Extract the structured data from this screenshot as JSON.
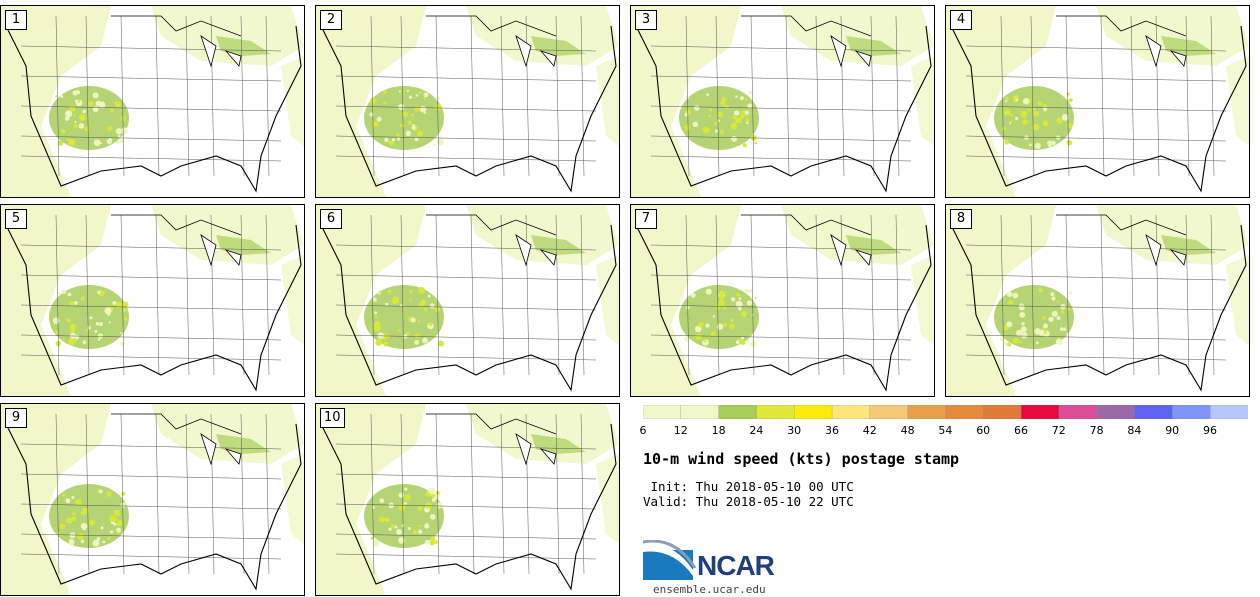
{
  "panels": [
    {
      "label": "1"
    },
    {
      "label": "2"
    },
    {
      "label": "3"
    },
    {
      "label": "4"
    },
    {
      "label": "5"
    },
    {
      "label": "6"
    },
    {
      "label": "7"
    },
    {
      "label": "8"
    },
    {
      "label": "9"
    },
    {
      "label": "10"
    }
  ],
  "colorbar": {
    "ticks": [
      "6",
      "12",
      "18",
      "24",
      "30",
      "36",
      "42",
      "48",
      "54",
      "60",
      "66",
      "72",
      "78",
      "84",
      "90",
      "96"
    ],
    "colors": [
      "#f0f7c8",
      "#f0f7c8",
      "#a6cd5a",
      "#dfe83a",
      "#fbed0b",
      "#fce57a",
      "#f5c97a",
      "#e8a04a",
      "#e48a3c",
      "#de7a3a",
      "#e8093c",
      "#dc4d9a",
      "#9a6aa8",
      "#5e64f0",
      "#7f96f8",
      "#b4c8fa"
    ],
    "unit_range": [
      6,
      102
    ]
  },
  "title": "10-m wind speed (kts) postage stamp",
  "init": " Init: Thu 2018-05-10 00 UTC",
  "valid": "Valid: Thu 2018-05-10 22 UTC",
  "logo": {
    "name": "NCAR"
  },
  "site": "ensemble.ucar.edu",
  "map_colors": {
    "light": "#eef6c0",
    "mid": "#a8ce5c",
    "bright": "#d8e838"
  }
}
